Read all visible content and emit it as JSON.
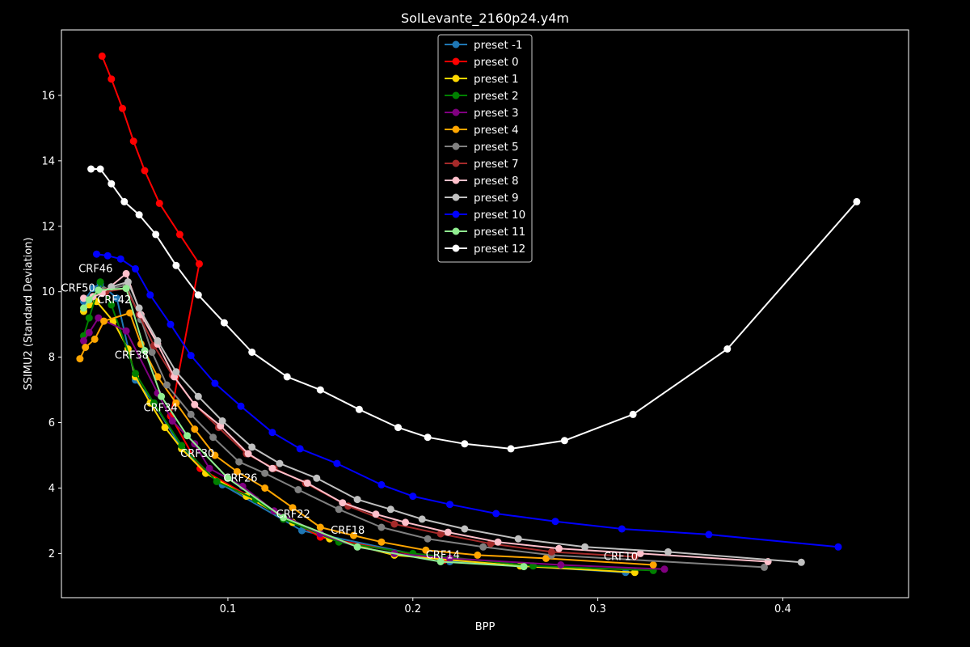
{
  "chart_data": {
    "type": "line",
    "title": "SolLevante_2160p24.y4m",
    "xlabel": "BPP",
    "ylabel": "SSIMU2 (Standard Deviation)",
    "xlim": [
      0.01,
      0.468
    ],
    "ylim": [
      0.65,
      18.0
    ],
    "xticks": [
      0.1,
      0.2,
      0.3,
      0.4
    ],
    "yticks": [
      2,
      4,
      6,
      8,
      10,
      12,
      14,
      16
    ],
    "grid": false,
    "legend_position": "top-center",
    "series": [
      {
        "name": "preset -1",
        "color": "#1f77b4",
        "x": [
          0.022,
          0.027,
          0.031,
          0.04,
          0.05,
          0.06,
          0.075,
          0.097,
          0.14,
          0.22,
          0.315
        ],
        "y": [
          9.7,
          10.1,
          10.25,
          9.8,
          7.3,
          6.6,
          5.2,
          4.1,
          2.7,
          1.75,
          1.42
        ]
      },
      {
        "name": "preset 0",
        "color": "#ff0000",
        "x": [
          0.032,
          0.037,
          0.043,
          0.049,
          0.055,
          0.063,
          0.074,
          0.0845,
          0.069,
          0.085,
          0.15,
          0.217
        ],
        "y": [
          17.2,
          16.5,
          15.6,
          14.6,
          13.7,
          12.7,
          11.75,
          10.85,
          6.2,
          4.6,
          2.5,
          1.8
        ]
      },
      {
        "name": "preset 1",
        "color": "#ffd700",
        "x": [
          0.022,
          0.025,
          0.029,
          0.038,
          0.046,
          0.05,
          0.058,
          0.066,
          0.075,
          0.088,
          0.11,
          0.135,
          0.155,
          0.19,
          0.258,
          0.32
        ],
        "y": [
          9.4,
          9.6,
          9.7,
          9.1,
          8.25,
          7.4,
          6.6,
          5.85,
          5.2,
          4.45,
          3.75,
          2.95,
          2.45,
          1.95,
          1.62,
          1.42
        ]
      },
      {
        "name": "preset 2",
        "color": "#008000",
        "x": [
          0.022,
          0.025,
          0.031,
          0.037,
          0.05,
          0.06,
          0.075,
          0.094,
          0.115,
          0.13,
          0.16,
          0.2,
          0.265,
          0.33
        ],
        "y": [
          8.65,
          9.2,
          10.3,
          9.6,
          7.5,
          6.6,
          5.3,
          4.2,
          3.65,
          3.05,
          2.35,
          2.0,
          1.62,
          1.48
        ]
      },
      {
        "name": "preset 3",
        "color": "#800080",
        "x": [
          0.022,
          0.025,
          0.03,
          0.045,
          0.062,
          0.07,
          0.082,
          0.09,
          0.108,
          0.125,
          0.15,
          0.17,
          0.19,
          0.22,
          0.28,
          0.336
        ],
        "y": [
          8.5,
          8.75,
          9.2,
          8.8,
          6.9,
          6.05,
          5.35,
          4.6,
          4.05,
          3.3,
          2.6,
          2.2,
          2.0,
          1.85,
          1.65,
          1.52
        ]
      },
      {
        "name": "preset 4",
        "color": "#ffa500",
        "x": [
          0.02,
          0.023,
          0.028,
          0.033,
          0.047,
          0.053,
          0.062,
          0.072,
          0.082,
          0.093,
          0.105,
          0.12,
          0.135,
          0.15,
          0.168,
          0.183,
          0.207,
          0.235,
          0.272,
          0.33
        ],
        "y": [
          7.95,
          8.3,
          8.55,
          9.1,
          9.35,
          8.4,
          7.4,
          6.6,
          5.8,
          5.0,
          4.5,
          4.0,
          3.4,
          2.8,
          2.55,
          2.35,
          2.1,
          1.95,
          1.85,
          1.65
        ]
      },
      {
        "name": "preset 5",
        "color": "#808080",
        "x": [
          0.033,
          0.045,
          0.053,
          0.059,
          0.067,
          0.08,
          0.092,
          0.106,
          0.12,
          0.138,
          0.16,
          0.183,
          0.208,
          0.238,
          0.275,
          0.39
        ],
        "y": [
          10.05,
          10.2,
          9.15,
          8.15,
          7.15,
          6.25,
          5.55,
          4.8,
          4.45,
          3.95,
          3.35,
          2.8,
          2.45,
          2.2,
          1.95,
          1.58
        ]
      },
      {
        "name": "preset 7",
        "color": "#a52a2a",
        "x": [
          0.034,
          0.045,
          0.052,
          0.06,
          0.07,
          0.082,
          0.095,
          0.11,
          0.125,
          0.142,
          0.165,
          0.19,
          0.215,
          0.242,
          0.275,
          0.32
        ],
        "y": [
          10.0,
          10.1,
          9.3,
          8.35,
          7.45,
          6.55,
          5.85,
          5.05,
          4.6,
          4.15,
          3.45,
          2.9,
          2.6,
          2.3,
          2.05,
          1.9
        ]
      },
      {
        "name": "preset 8",
        "color": "#ffc0cb",
        "x": [
          0.022,
          0.027,
          0.032,
          0.045,
          0.053,
          0.062,
          0.071,
          0.082,
          0.096,
          0.111,
          0.124,
          0.143,
          0.162,
          0.18,
          0.196,
          0.219,
          0.246,
          0.279,
          0.323,
          0.392
        ],
        "y": [
          9.8,
          9.85,
          9.95,
          10.55,
          9.3,
          8.4,
          7.4,
          6.55,
          5.9,
          5.05,
          4.6,
          4.15,
          3.55,
          3.2,
          2.95,
          2.65,
          2.35,
          2.15,
          2.0,
          1.75
        ]
      },
      {
        "name": "preset 9",
        "color": "#c0c0c0",
        "x": [
          0.037,
          0.046,
          0.052,
          0.062,
          0.072,
          0.084,
          0.097,
          0.113,
          0.128,
          0.148,
          0.17,
          0.188,
          0.205,
          0.228,
          0.257,
          0.293,
          0.338,
          0.41
        ],
        "y": [
          10.15,
          10.3,
          9.5,
          8.5,
          7.55,
          6.8,
          6.05,
          5.25,
          4.75,
          4.3,
          3.65,
          3.35,
          3.05,
          2.75,
          2.45,
          2.2,
          2.05,
          1.73
        ]
      },
      {
        "name": "preset 10",
        "color": "#0000ff",
        "x": [
          0.029,
          0.035,
          0.042,
          0.05,
          0.058,
          0.069,
          0.08,
          0.093,
          0.107,
          0.124,
          0.139,
          0.159,
          0.183,
          0.2,
          0.22,
          0.245,
          0.277,
          0.313,
          0.36,
          0.43
        ],
        "y": [
          11.15,
          11.1,
          11.0,
          10.7,
          9.9,
          9.0,
          8.05,
          7.2,
          6.5,
          5.7,
          5.2,
          4.75,
          4.1,
          3.75,
          3.5,
          3.22,
          2.98,
          2.75,
          2.58,
          2.2
        ]
      },
      {
        "name": "preset 11",
        "color": "#90ee90",
        "x": [
          0.022,
          0.025,
          0.03,
          0.045,
          0.055,
          0.064,
          0.078,
          0.1,
          0.13,
          0.17,
          0.215,
          0.26
        ],
        "y": [
          9.5,
          9.75,
          10.05,
          10.1,
          8.2,
          6.8,
          5.6,
          4.3,
          3.1,
          2.2,
          1.75,
          1.6
        ]
      },
      {
        "name": "preset 12",
        "color": "#ffffff",
        "x": [
          0.026,
          0.031,
          0.037,
          0.044,
          0.052,
          0.061,
          0.072,
          0.084,
          0.098,
          0.113,
          0.132,
          0.15,
          0.171,
          0.192,
          0.208,
          0.228,
          0.253,
          0.282,
          0.319,
          0.37,
          0.44
        ],
        "y": [
          13.75,
          13.75,
          13.3,
          12.75,
          12.35,
          11.75,
          10.8,
          9.9,
          9.05,
          8.15,
          7.4,
          7.0,
          6.4,
          5.85,
          5.55,
          5.35,
          5.2,
          5.45,
          6.25,
          8.25,
          12.75
        ]
      }
    ],
    "annotations": [
      {
        "text": "CRF46",
        "x": 0.0285,
        "y": 10.6
      },
      {
        "text": "CRF50",
        "x": 0.019,
        "y": 10.0
      },
      {
        "text": "CRF42",
        "x": 0.0385,
        "y": 9.65
      },
      {
        "text": "CRF38",
        "x": 0.048,
        "y": 7.95
      },
      {
        "text": "CRF34",
        "x": 0.0636,
        "y": 6.35
      },
      {
        "text": "CRF30",
        "x": 0.0835,
        "y": 4.95
      },
      {
        "text": "CRF26",
        "x": 0.1068,
        "y": 4.2
      },
      {
        "text": "CRF22",
        "x": 0.1353,
        "y": 3.1
      },
      {
        "text": "CRF18",
        "x": 0.1648,
        "y": 2.6
      },
      {
        "text": "CRF14",
        "x": 0.2162,
        "y": 1.85
      },
      {
        "text": "CRF10",
        "x": 0.3124,
        "y": 1.8
      }
    ]
  }
}
